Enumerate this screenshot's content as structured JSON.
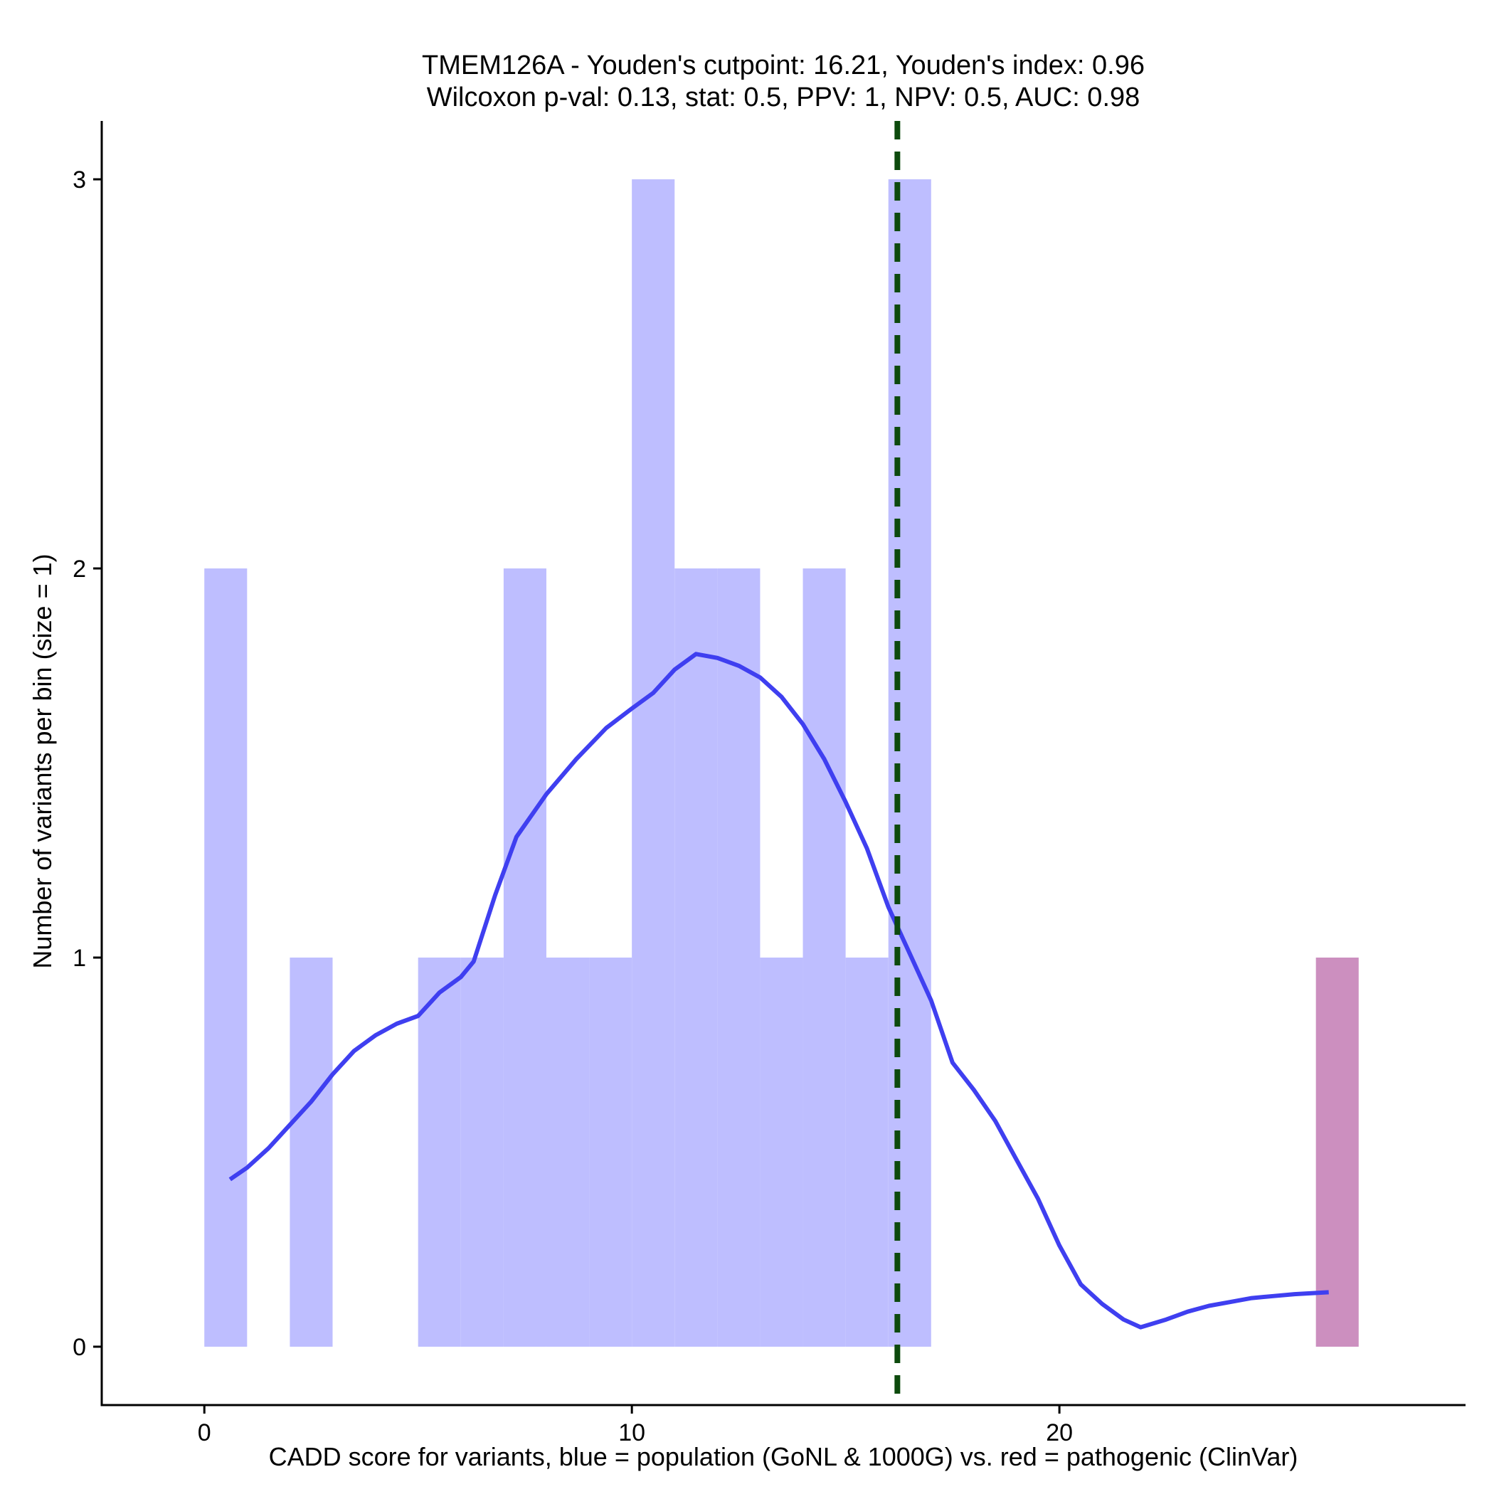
{
  "chart_data": {
    "type": "histogram",
    "title": "TMEM126A - Youden's cutpoint: 16.21, Youden's index: 0.96",
    "subtitle": "Wilcoxon p-val: 0.13, stat: 0.5, PPV: 1, NPV: 0.5, AUC: 0.98",
    "xlabel": "CADD score for variants, blue = population (GoNL & 1000G) vs. red = pathogenic (ClinVar)",
    "ylabel": "Number of variants per bin (size = 1)",
    "xlim": [
      -2.4,
      29.5
    ],
    "ylim": [
      -0.15,
      3.15
    ],
    "x_ticks": [
      0,
      10,
      20
    ],
    "y_ticks": [
      0,
      1,
      2,
      3
    ],
    "bin_size": 1,
    "series": [
      {
        "name": "population (GoNL & 1000G)",
        "color": "#bebeff",
        "bins": [
          {
            "x0": 0,
            "x1": 1,
            "count": 2
          },
          {
            "x0": 2,
            "x1": 3,
            "count": 1
          },
          {
            "x0": 5,
            "x1": 6,
            "count": 1
          },
          {
            "x0": 6,
            "x1": 7,
            "count": 1
          },
          {
            "x0": 7,
            "x1": 8,
            "count": 2
          },
          {
            "x0": 8,
            "x1": 9,
            "count": 1
          },
          {
            "x0": 9,
            "x1": 10,
            "count": 1
          },
          {
            "x0": 10,
            "x1": 11,
            "count": 3
          },
          {
            "x0": 11,
            "x1": 12,
            "count": 2
          },
          {
            "x0": 12,
            "x1": 13,
            "count": 2
          },
          {
            "x0": 13,
            "x1": 14,
            "count": 1
          },
          {
            "x0": 14,
            "x1": 15,
            "count": 2
          },
          {
            "x0": 15,
            "x1": 16,
            "count": 1
          },
          {
            "x0": 16,
            "x1": 17,
            "count": 3
          }
        ]
      },
      {
        "name": "pathogenic (ClinVar)",
        "color": "#cc8fbf",
        "bins": [
          {
            "x0": 26,
            "x1": 27,
            "count": 1
          }
        ]
      }
    ],
    "density_curve": {
      "color": "#3f3ff0",
      "x": [
        0.6,
        1.0,
        1.5,
        2.0,
        2.5,
        3.0,
        3.5,
        4.0,
        4.5,
        5.0,
        5.5,
        6.0,
        6.3,
        6.8,
        7.3,
        8.0,
        8.7,
        9.4,
        10.0,
        10.5,
        11.0,
        11.5,
        12.0,
        12.5,
        13.0,
        13.5,
        14.0,
        14.5,
        15.0,
        15.5,
        16.0,
        16.5,
        17.0,
        17.5,
        18.0,
        18.5,
        19.0,
        19.5,
        20.0,
        20.5,
        21.0,
        21.5,
        21.9,
        22.5,
        23.0,
        23.5,
        24.0,
        24.5,
        25.0,
        25.5,
        26.3
      ],
      "y": [
        0.43,
        0.46,
        0.51,
        0.57,
        0.63,
        0.7,
        0.76,
        0.8,
        0.83,
        0.85,
        0.91,
        0.95,
        0.99,
        1.16,
        1.31,
        1.42,
        1.51,
        1.59,
        1.64,
        1.68,
        1.74,
        1.78,
        1.77,
        1.75,
        1.72,
        1.67,
        1.6,
        1.51,
        1.4,
        1.28,
        1.13,
        1.01,
        0.89,
        0.73,
        0.66,
        0.58,
        0.48,
        0.38,
        0.26,
        0.16,
        0.11,
        0.07,
        0.05,
        0.07,
        0.09,
        0.105,
        0.115,
        0.125,
        0.13,
        0.135,
        0.14
      ]
    },
    "cutpoint": {
      "x": 16.21,
      "color": "#0d4a0d",
      "style": "dashed"
    }
  }
}
